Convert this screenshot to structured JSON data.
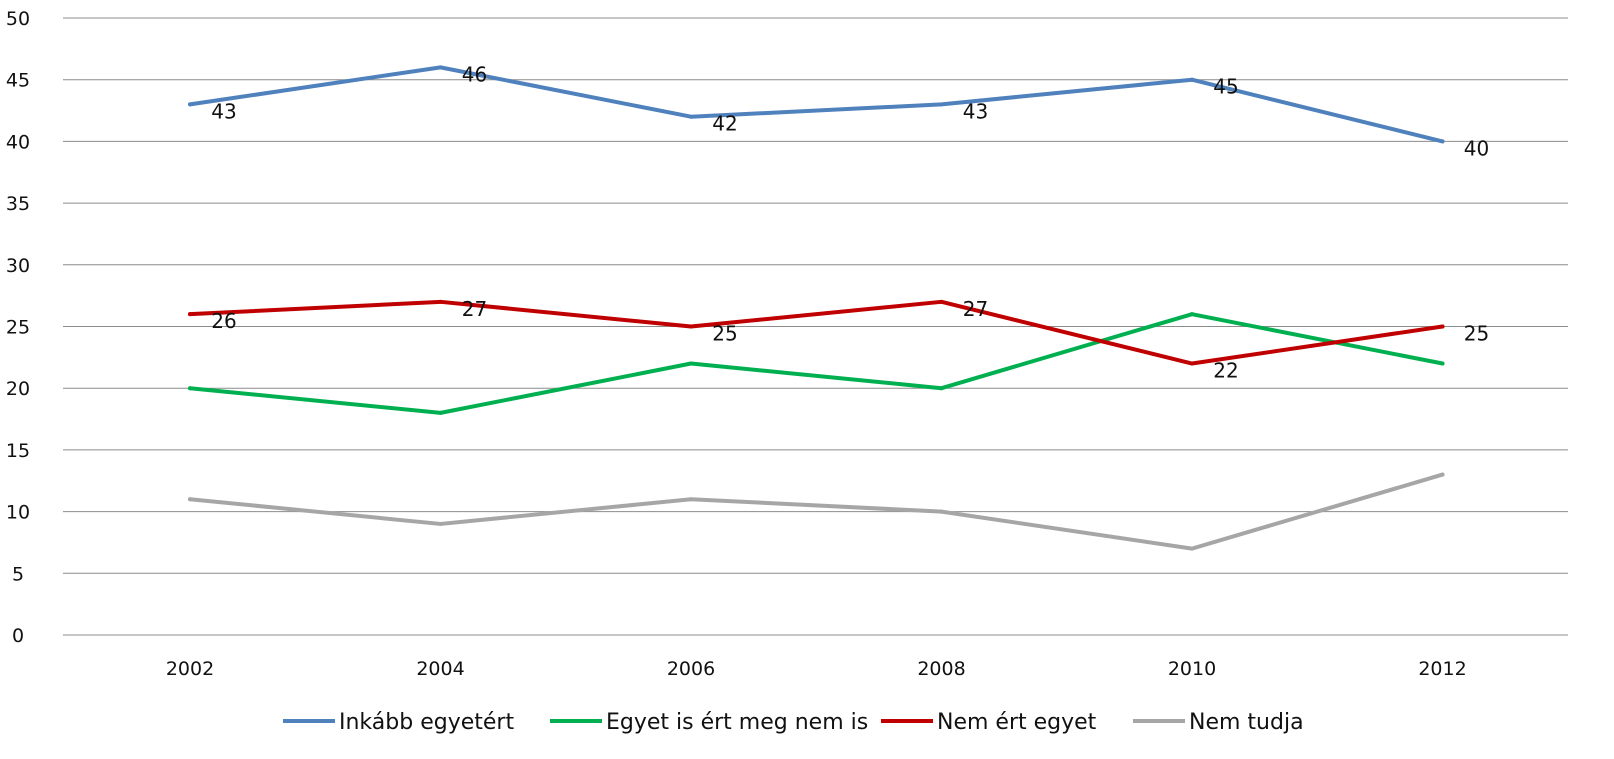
{
  "chart_data": {
    "type": "line",
    "categories": [
      "2002",
      "2004",
      "2006",
      "2008",
      "2010",
      "2012"
    ],
    "ylim": [
      0,
      50
    ],
    "yticks": [
      0,
      5,
      10,
      15,
      20,
      25,
      30,
      35,
      40,
      45,
      50
    ],
    "grid": true,
    "legend_position": "bottom",
    "series": [
      {
        "name": "Inkább egyetért",
        "color": "#4F81BD",
        "values": [
          43,
          46,
          42,
          43,
          45,
          40
        ],
        "show_labels": true
      },
      {
        "name": "Egyet is ért meg nem is",
        "color": "#00B050",
        "values": [
          20,
          18,
          22,
          20,
          26,
          22
        ],
        "show_labels": false
      },
      {
        "name": "Nem ért egyet",
        "color": "#C00000",
        "values": [
          26,
          27,
          25,
          27,
          22,
          25
        ],
        "show_labels": true
      },
      {
        "name": "Nem tudja",
        "color": "#A6A6A6",
        "values": [
          11,
          9,
          11,
          10,
          7,
          13
        ],
        "show_labels": false
      }
    ]
  }
}
